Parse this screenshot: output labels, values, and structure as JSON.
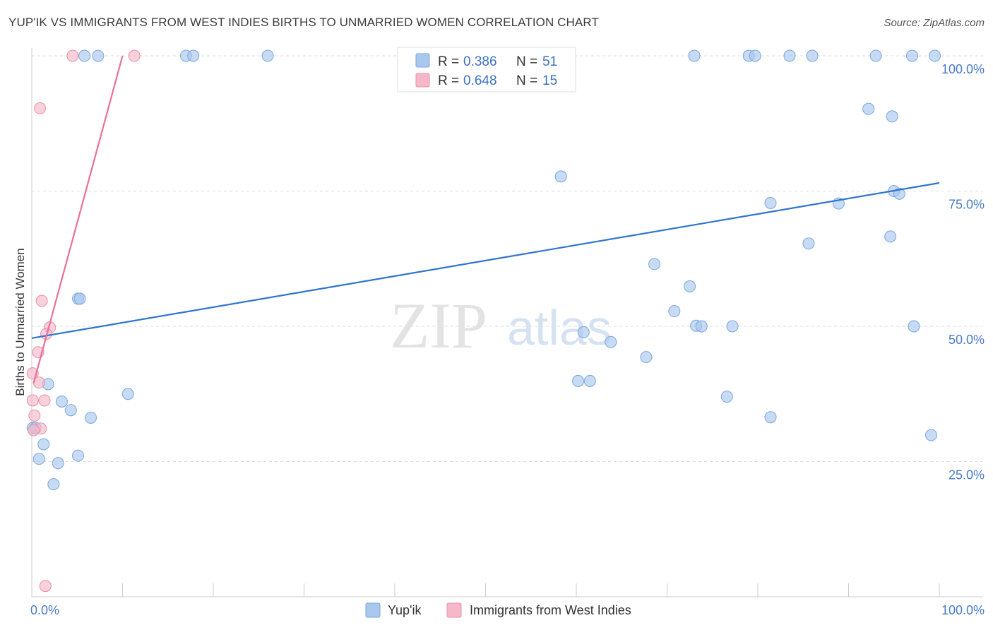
{
  "header": {
    "title": "YUP'IK VS IMMIGRANTS FROM WEST INDIES BIRTHS TO UNMARRIED WOMEN CORRELATION CHART",
    "source": "Source: ZipAtlas.com"
  },
  "watermark": {
    "zip": "ZIP",
    "atlas": "atlas"
  },
  "legend": {
    "series": [
      {
        "r_label": "R =",
        "r_value": "0.386",
        "n_label": "N =",
        "n_value": "51",
        "color": "#a9c8ee"
      },
      {
        "r_label": "R =",
        "r_value": "0.648",
        "n_label": "N =",
        "n_value": "15",
        "color": "#f6b8c8"
      }
    ]
  },
  "bottom_legend": {
    "items": [
      "Yup'ik",
      "Immigrants from West Indies"
    ]
  },
  "chart_data": {
    "type": "scatter",
    "title": "YUP'IK VS IMMIGRANTS FROM WEST INDIES BIRTHS TO UNMARRIED WOMEN CORRELATION CHART",
    "xlabel": "",
    "ylabel": "Births to Unmarried Women",
    "xlim": [
      0,
      100
    ],
    "ylim": [
      0,
      100
    ],
    "x_tick_labels": [
      "0.0%",
      "100.0%"
    ],
    "y_tick_labels": [
      "25.0%",
      "50.0%",
      "75.0%",
      "100.0%"
    ],
    "y_ticks": [
      25,
      50,
      75,
      100
    ],
    "grid": true,
    "legend_position": "top-center",
    "series": [
      {
        "name": "Yup'ik",
        "color": "#a9c8ee",
        "stroke": "#7aa6dd",
        "trend_color": "#2f74d0",
        "trend": {
          "x": [
            0,
            100
          ],
          "y": [
            47.8,
            76.5
          ]
        },
        "points": [
          [
            5.8,
            100
          ],
          [
            7.3,
            100
          ],
          [
            17,
            100
          ],
          [
            17.8,
            100
          ],
          [
            26,
            100
          ],
          [
            73,
            100
          ],
          [
            79,
            100
          ],
          [
            79.7,
            100
          ],
          [
            83.5,
            100
          ],
          [
            86,
            100
          ],
          [
            93,
            100
          ],
          [
            97,
            100
          ],
          [
            99.5,
            100
          ],
          [
            92.2,
            90.2
          ],
          [
            94.8,
            88.8
          ],
          [
            58.3,
            77.7
          ],
          [
            95,
            75
          ],
          [
            95.6,
            74.5
          ],
          [
            81.4,
            72.8
          ],
          [
            88.9,
            72.7
          ],
          [
            94.6,
            66.6
          ],
          [
            85.6,
            65.3
          ],
          [
            68.6,
            61.5
          ],
          [
            72.5,
            57.4
          ],
          [
            5.1,
            55.1
          ],
          [
            5.3,
            55.1
          ],
          [
            70.8,
            52.8
          ],
          [
            73.2,
            50.1
          ],
          [
            73.8,
            50
          ],
          [
            77.2,
            50
          ],
          [
            97.2,
            50
          ],
          [
            60.8,
            48.9
          ],
          [
            63.8,
            47.1
          ],
          [
            67.7,
            44.3
          ],
          [
            60.2,
            39.9
          ],
          [
            61.5,
            39.9
          ],
          [
            1.8,
            39.3
          ],
          [
            10.6,
            37.5
          ],
          [
            76.6,
            37
          ],
          [
            3.3,
            36.1
          ],
          [
            4.3,
            34.5
          ],
          [
            6.5,
            33.1
          ],
          [
            81.4,
            33.2
          ],
          [
            0.1,
            31.2
          ],
          [
            0.4,
            31.2
          ],
          [
            1.3,
            28.2
          ],
          [
            99.1,
            29.9
          ],
          [
            0.8,
            25.5
          ],
          [
            2.9,
            24.7
          ],
          [
            5.1,
            26.1
          ],
          [
            2.4,
            20.8
          ]
        ]
      },
      {
        "name": "Immigrants from West Indies",
        "color": "#f6b8c8",
        "stroke": "#e98fa8",
        "trend_color": "#e8709a",
        "trend": {
          "x": [
            0.2,
            10
          ],
          "y": [
            39.5,
            100
          ]
        },
        "points": [
          [
            4.5,
            100
          ],
          [
            11.3,
            100
          ],
          [
            0.9,
            90.3
          ],
          [
            1.1,
            54.7
          ],
          [
            2,
            49.8
          ],
          [
            1.6,
            48.6
          ],
          [
            0.7,
            45.2
          ],
          [
            0.1,
            41.3
          ],
          [
            0.8,
            39.6
          ],
          [
            0.1,
            36.3
          ],
          [
            1.4,
            36.3
          ],
          [
            1,
            31.1
          ],
          [
            0.2,
            30.8
          ],
          [
            0.3,
            33.5
          ],
          [
            1.5,
            2
          ]
        ]
      }
    ]
  }
}
